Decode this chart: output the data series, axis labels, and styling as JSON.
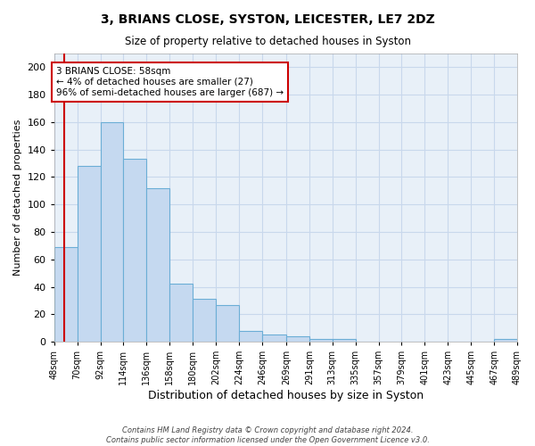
{
  "title": "3, BRIANS CLOSE, SYSTON, LEICESTER, LE7 2DZ",
  "subtitle": "Size of property relative to detached houses in Syston",
  "xlabel": "Distribution of detached houses by size in Syston",
  "ylabel": "Number of detached properties",
  "bar_edges": [
    48,
    70,
    92,
    114,
    136,
    158,
    180,
    202,
    224,
    246,
    269,
    291,
    313,
    335,
    357,
    379,
    401,
    423,
    445,
    467,
    489
  ],
  "bar_heights": [
    69,
    128,
    160,
    133,
    112,
    42,
    31,
    27,
    8,
    5,
    4,
    2,
    2,
    0,
    0,
    0,
    0,
    0,
    0,
    2
  ],
  "bar_color": "#c5d9f0",
  "bar_edge_color": "#6baed6",
  "grid_color": "#c8d8ec",
  "bg_color": "#e8f0f8",
  "red_line_x": 58,
  "red_line_color": "#cc0000",
  "annotation_text": "3 BRIANS CLOSE: 58sqm\n← 4% of detached houses are smaller (27)\n96% of semi-detached houses are larger (687) →",
  "annotation_box_color": "#ffffff",
  "annotation_border_color": "#cc0000",
  "ylim": [
    0,
    210
  ],
  "yticks": [
    0,
    20,
    40,
    60,
    80,
    100,
    120,
    140,
    160,
    180,
    200
  ],
  "footer_line1": "Contains HM Land Registry data © Crown copyright and database right 2024.",
  "footer_line2": "Contains public sector information licensed under the Open Government Licence v3.0.",
  "tick_labels": [
    "48sqm",
    "70sqm",
    "92sqm",
    "114sqm",
    "136sqm",
    "158sqm",
    "180sqm",
    "202sqm",
    "224sqm",
    "246sqm",
    "269sqm",
    "291sqm",
    "313sqm",
    "335sqm",
    "357sqm",
    "379sqm",
    "401sqm",
    "423sqm",
    "445sqm",
    "467sqm",
    "489sqm"
  ]
}
